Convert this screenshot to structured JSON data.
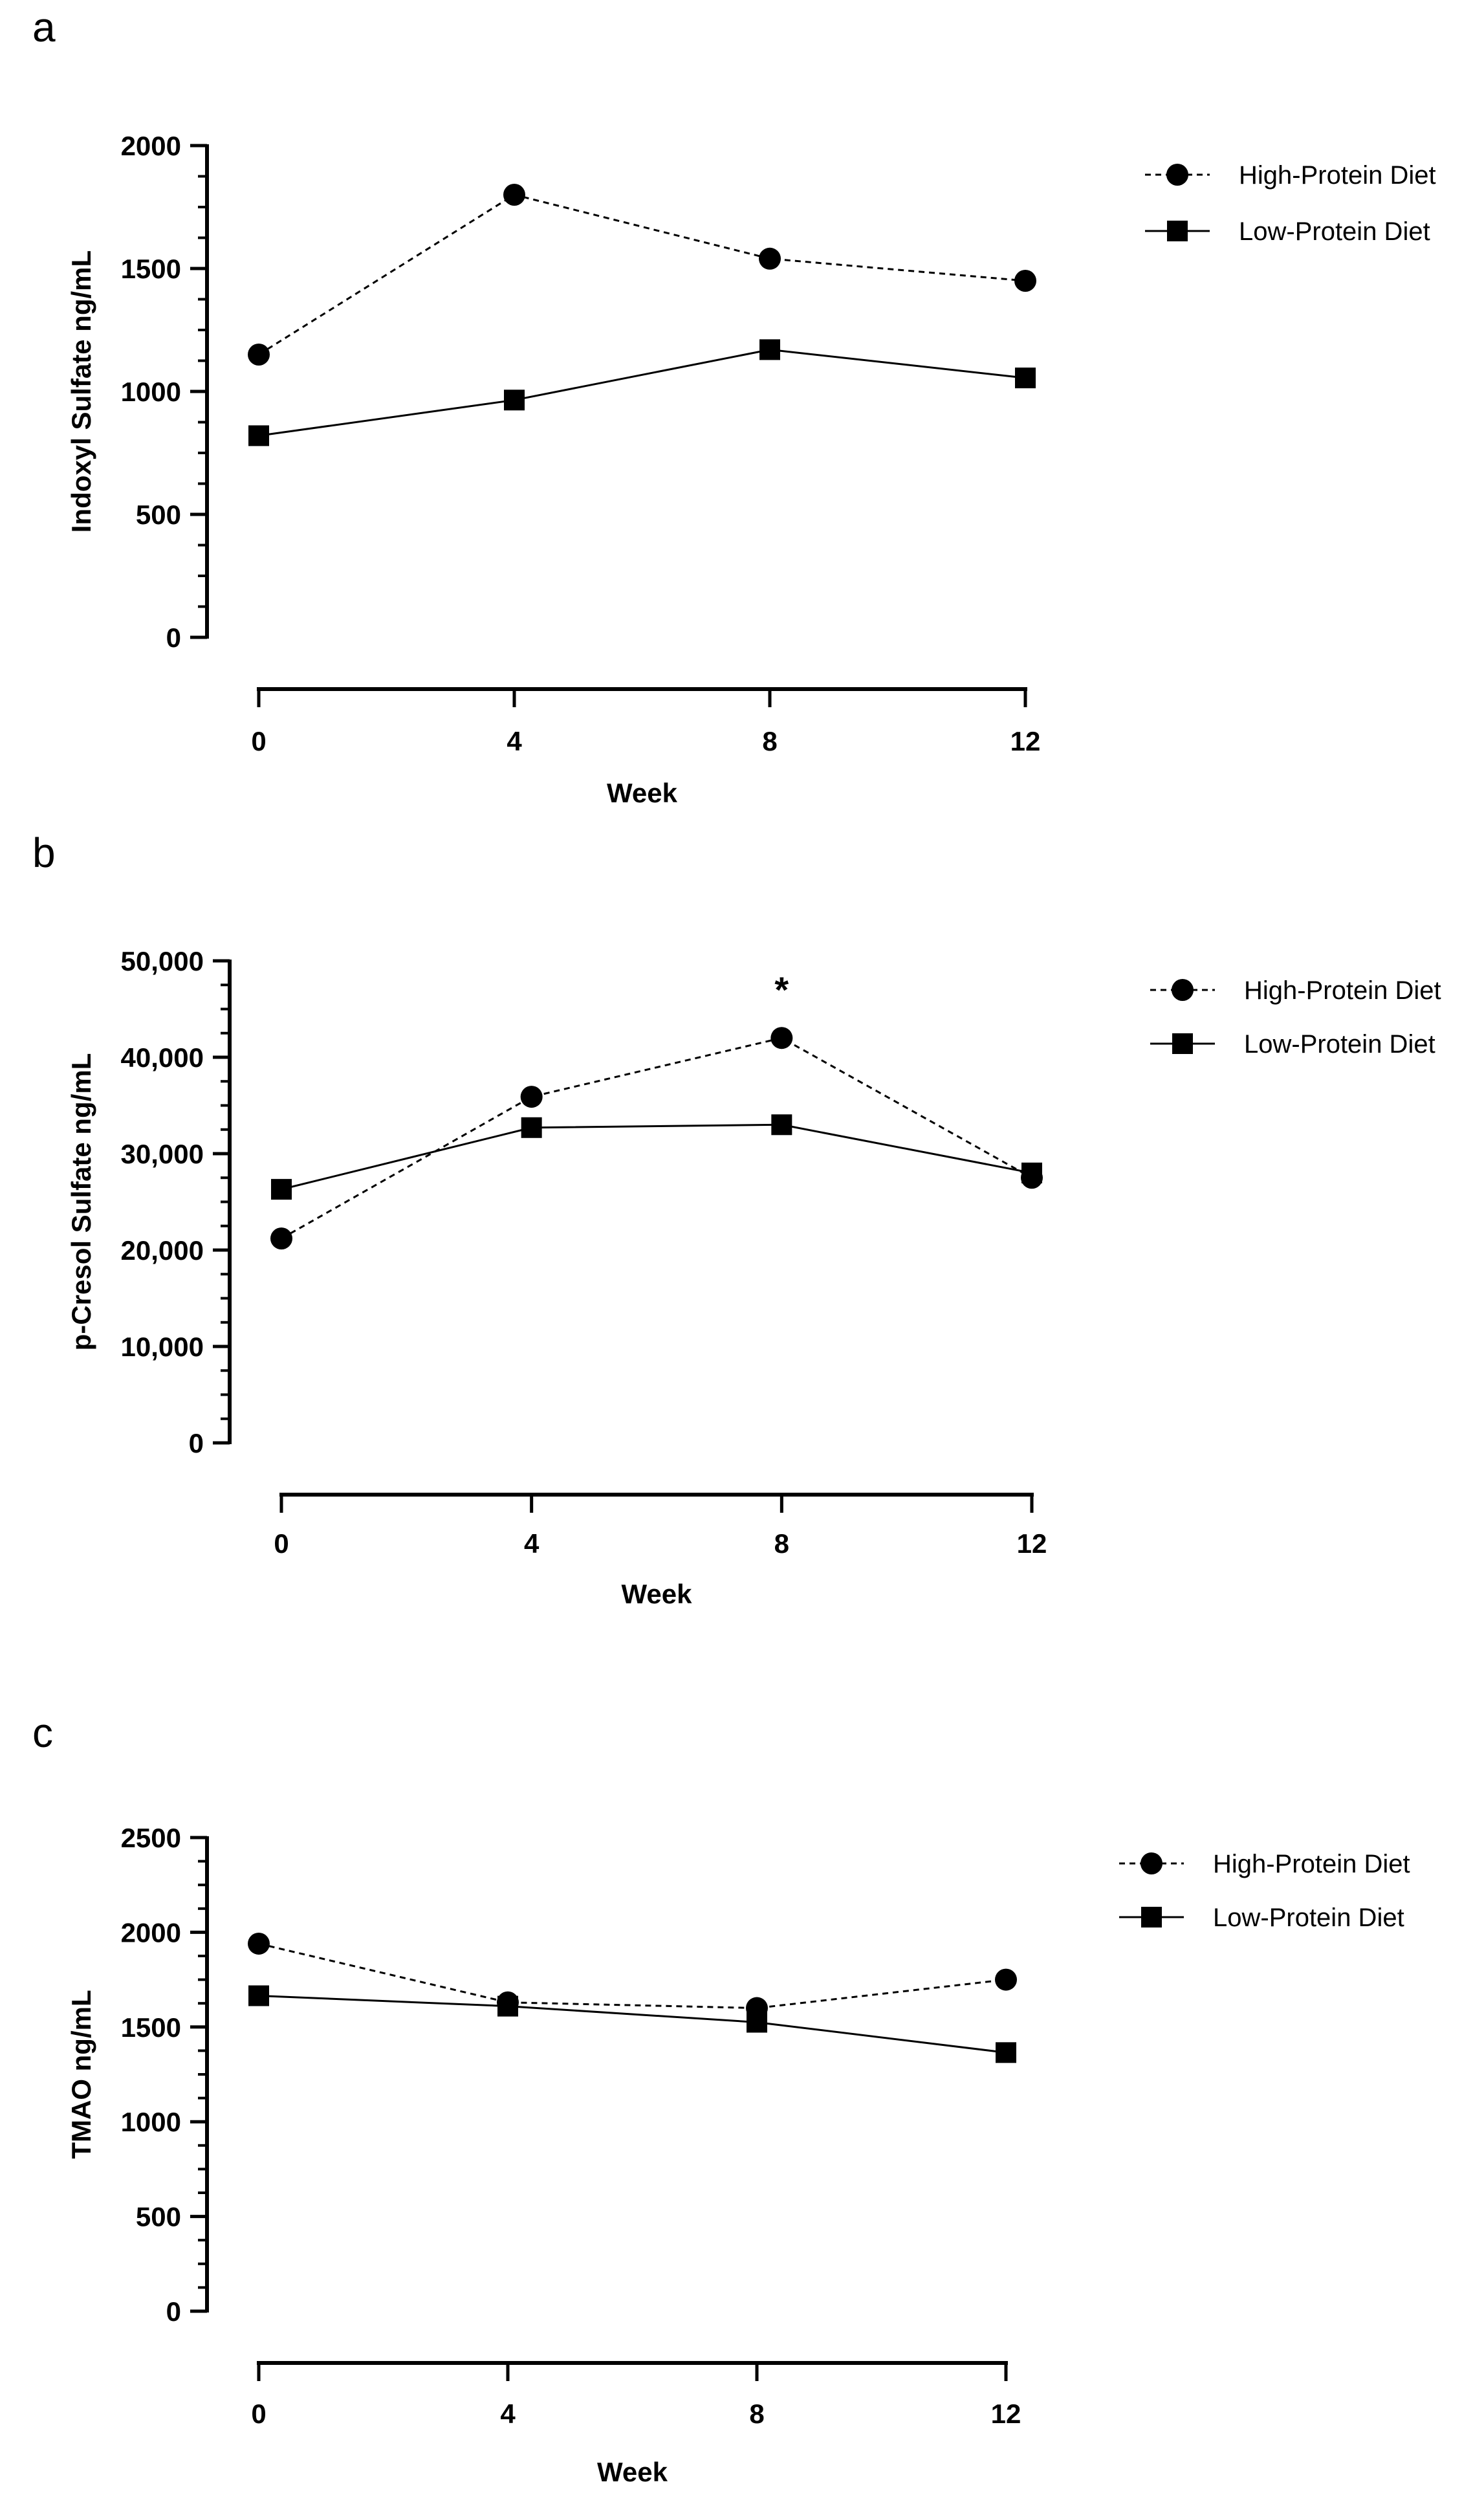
{
  "chart_data": [
    {
      "panel": "a",
      "type": "line",
      "x": [
        0,
        4,
        8,
        12
      ],
      "xlabel": "Week",
      "xticks": [
        "0",
        "4",
        "8",
        "12"
      ],
      "ylabel": "Indoxyl Sulfate ng/mL",
      "ylim": [
        0,
        2000
      ],
      "yticks": [
        "0",
        "500",
        "1000",
        "1500",
        "2000"
      ],
      "series": [
        {
          "name": "High-Protein Diet",
          "marker": "circle",
          "line": "dashed",
          "values": [
            1150,
            1800,
            1540,
            1450
          ]
        },
        {
          "name": "Low-Protein Diet",
          "marker": "square",
          "line": "solid",
          "values": [
            820,
            965,
            1170,
            1055
          ]
        }
      ],
      "annotations": []
    },
    {
      "panel": "b",
      "type": "line",
      "x": [
        0,
        4,
        8,
        12
      ],
      "xlabel": "Week",
      "xticks": [
        "0",
        "4",
        "8",
        "12"
      ],
      "ylabel": "p-Cresol  Sulfate ng/mL",
      "ylim": [
        0,
        50000
      ],
      "yticks": [
        "0",
        "10,000",
        "20,000",
        "30,000",
        "40,000",
        "50,000"
      ],
      "series": [
        {
          "name": "High-Protein Diet",
          "marker": "circle",
          "line": "dashed",
          "values": [
            21200,
            35900,
            42000,
            27500
          ]
        },
        {
          "name": "Low-Protein Diet",
          "marker": "square",
          "line": "solid",
          "values": [
            26300,
            32700,
            33000,
            28000
          ]
        }
      ],
      "annotations": [
        {
          "text": "*",
          "x": 8,
          "series": "High-Protein Diet"
        }
      ]
    },
    {
      "panel": "c",
      "type": "line",
      "x": [
        0,
        4,
        8,
        12
      ],
      "xlabel": "Week",
      "xticks": [
        "0",
        "4",
        "8",
        "12"
      ],
      "ylabel": "TMAO ng/mL",
      "ylim": [
        0,
        2500
      ],
      "yticks": [
        "0",
        "500",
        "1000",
        "1500",
        "2000",
        "2500"
      ],
      "series": [
        {
          "name": "High-Protein Diet",
          "marker": "circle",
          "line": "dashed",
          "values": [
            1940,
            1630,
            1600,
            1750
          ]
        },
        {
          "name": "Low-Protein Diet",
          "marker": "square",
          "line": "solid",
          "values": [
            1665,
            1610,
            1525,
            1365
          ]
        }
      ],
      "annotations": []
    }
  ],
  "colors": {
    "ink": "#000000",
    "background": "#ffffff"
  }
}
